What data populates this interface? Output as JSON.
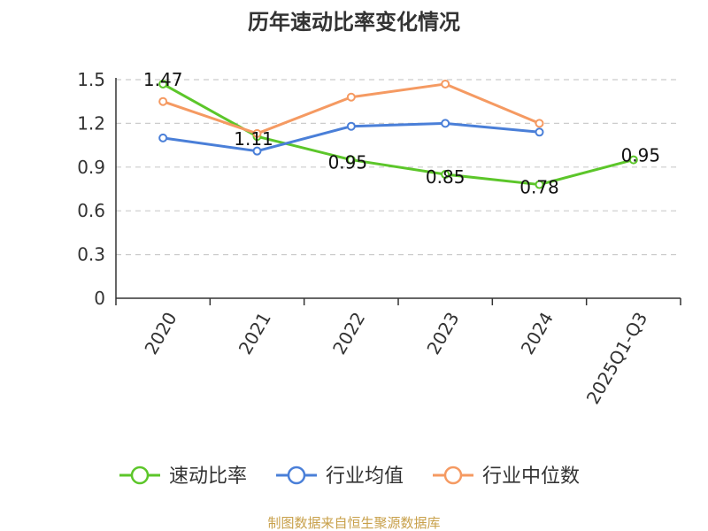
{
  "chart_data": {
    "type": "line",
    "title": "历年速动比率变化情况",
    "categories": [
      "2020",
      "2021",
      "2022",
      "2023",
      "2024",
      "2025Q1-Q3"
    ],
    "ylim": [
      0,
      1.5
    ],
    "yticks": [
      "0",
      "0.3",
      "0.6",
      "0.9",
      "1.2",
      "1.5"
    ],
    "grid": true,
    "legend_position": "bottom",
    "series": [
      {
        "name": "速动比率",
        "color": "#5cc62a",
        "values": [
          1.47,
          1.11,
          0.95,
          0.85,
          0.78,
          0.95
        ],
        "labels": [
          "1.47",
          "1.11",
          "0.95",
          "0.85",
          "0.78",
          "0.95"
        ]
      },
      {
        "name": "行业均值",
        "color": "#4a7fd8",
        "values": [
          1.1,
          1.01,
          1.18,
          1.2,
          1.14,
          null
        ]
      },
      {
        "name": "行业中位数",
        "color": "#f59a62",
        "values": [
          1.35,
          1.13,
          1.38,
          1.47,
          1.2,
          null
        ]
      }
    ]
  },
  "source_text": "制图数据来自恒生聚源数据库"
}
